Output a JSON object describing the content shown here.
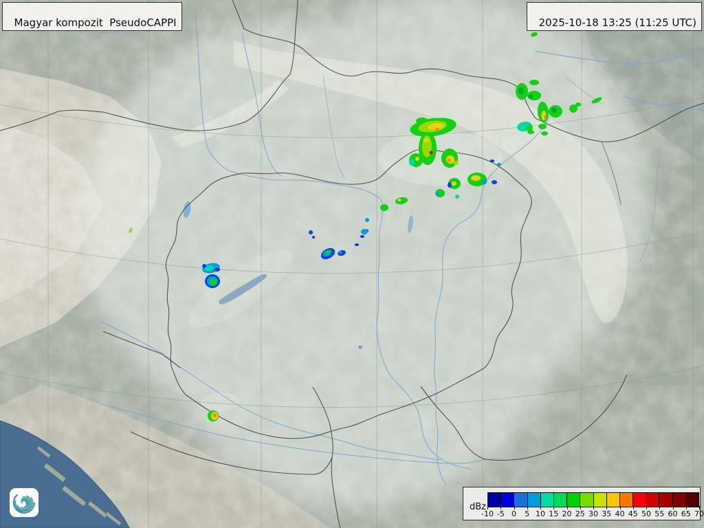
{
  "product": {
    "title": "Magyar kompozit  PseudoCAPPI",
    "timestamp": "2025-10-18 13:25 (11:25 UTC)"
  },
  "legend": {
    "unit": "dBz",
    "ticks": [
      "-10",
      "-5",
      "0",
      "5",
      "10",
      "15",
      "20",
      "25",
      "30",
      "35",
      "40",
      "45",
      "50",
      "55",
      "60",
      "65",
      "70"
    ],
    "colors": [
      "#0000A0",
      "#0000E1",
      "#1E6EDC",
      "#00A0DC",
      "#00DCA8",
      "#00DC5A",
      "#00D200",
      "#78DC00",
      "#C8E100",
      "#F5C800",
      "#FA7800",
      "#FA0000",
      "#D20000",
      "#A50000",
      "#820000",
      "#500000"
    ]
  },
  "logo": {
    "name": "hungaromet-spiral-logo",
    "gradient_start": "#45b27f",
    "gradient_end": "#2e6fae"
  },
  "map": {
    "colors": {
      "land": "#a9b2a7",
      "sea": "#4a6d92",
      "rivers": "#78a6d4",
      "borders": "#3c3c3c",
      "grid": "#8a8f8a",
      "coverage": "#f0f6ef",
      "echo_green": "#12D212",
      "echo_darkgreen": "#00AA32",
      "echo_yellowgreen": "#96DC00",
      "echo_yellow": "#E6D21E",
      "echo_orange": "#FA8C14",
      "echo_red": "#F50A0A",
      "echo_cyan": "#00A0DC",
      "echo_teal": "#00DCA8",
      "echo_blue": "#0A46E6"
    },
    "echoes": [
      [
        630,
        185,
        34,
        13,
        -8,
        "g"
      ],
      [
        614,
        176,
        9,
        5,
        0,
        "g"
      ],
      [
        629,
        184,
        21,
        8,
        -8,
        "lg"
      ],
      [
        634,
        184,
        12,
        5,
        -8,
        "y"
      ],
      [
        636,
        188,
        3,
        2,
        0,
        "o"
      ],
      [
        622,
        216,
        13,
        24,
        0,
        "g"
      ],
      [
        621,
        213,
        7,
        16,
        0,
        "lg"
      ],
      [
        620,
        204,
        4,
        3,
        0,
        "y"
      ],
      [
        605,
        235,
        5,
        3,
        0,
        "o"
      ],
      [
        627,
        222,
        2.5,
        2.5,
        0,
        "r"
      ],
      [
        654,
        230,
        12,
        14,
        0,
        "g"
      ],
      [
        655,
        232,
        6,
        6,
        0,
        "y"
      ],
      [
        663,
        237,
        4,
        3,
        0,
        "lg"
      ],
      [
        653,
        233,
        2.5,
        2.5,
        0,
        "o"
      ],
      [
        605,
        233,
        10,
        10,
        0,
        "g"
      ],
      [
        599,
        236,
        4,
        5,
        0,
        "t"
      ],
      [
        607,
        231,
        3,
        3,
        0,
        "y"
      ],
      [
        694,
        261,
        14,
        10,
        0,
        "g"
      ],
      [
        692,
        259,
        7,
        4,
        0,
        "y"
      ],
      [
        704,
        265,
        4,
        3,
        0,
        "c"
      ],
      [
        661,
        267,
        9,
        8,
        0,
        "g"
      ],
      [
        660,
        267,
        4,
        3,
        0,
        "y"
      ],
      [
        654,
        269,
        3,
        4,
        0,
        "b"
      ],
      [
        719,
        265,
        4,
        3,
        0,
        "b"
      ],
      [
        726,
        239,
        3,
        2,
        0,
        "c"
      ],
      [
        716,
        234,
        3,
        2,
        0,
        "b"
      ],
      [
        640,
        281,
        7,
        6,
        0,
        "g"
      ],
      [
        637,
        283,
        3,
        3,
        0,
        "c"
      ],
      [
        665,
        286,
        3,
        3,
        0,
        "t"
      ],
      [
        584,
        292,
        9,
        5,
        -10,
        "g"
      ],
      [
        581,
        291,
        2.5,
        2,
        0,
        "y"
      ],
      [
        559,
        302,
        6,
        5,
        0,
        "g"
      ],
      [
        534,
        320,
        3,
        3,
        0,
        "c"
      ],
      [
        533,
        336,
        3,
        2.5,
        0,
        "b"
      ],
      [
        759,
        133,
        9,
        12,
        0,
        "g"
      ],
      [
        758,
        132,
        4,
        5,
        0,
        "dg"
      ],
      [
        777,
        120,
        7,
        4,
        0,
        "g"
      ],
      [
        777,
        139,
        10,
        7,
        0,
        "g"
      ],
      [
        772,
        140,
        4,
        3,
        0,
        "dg"
      ],
      [
        790,
        163,
        8,
        15,
        -5,
        "g"
      ],
      [
        791,
        168,
        3.5,
        7,
        0,
        "y"
      ],
      [
        793,
        170,
        2,
        2.5,
        0,
        "o"
      ],
      [
        808,
        162,
        10,
        9,
        0,
        "g"
      ],
      [
        806,
        160,
        4,
        4,
        0,
        "dg"
      ],
      [
        834,
        158,
        6,
        6,
        0,
        "g"
      ],
      [
        841,
        152,
        4,
        3,
        0,
        "g"
      ],
      [
        763,
        184,
        11,
        7,
        -10,
        "t"
      ],
      [
        770,
        186,
        5,
        4,
        0,
        "g"
      ],
      [
        772,
        192,
        5,
        3,
        0,
        "g"
      ],
      [
        789,
        184,
        6,
        4,
        0,
        "g"
      ],
      [
        792,
        194,
        5,
        3,
        0,
        "g"
      ],
      [
        777,
        50,
        5,
        3,
        -15,
        "g"
      ],
      [
        802,
        43,
        4,
        2.5,
        -15,
        "g"
      ],
      [
        868,
        146,
        8,
        3,
        -25,
        "g"
      ],
      [
        307,
        390,
        13,
        7,
        -12,
        "c"
      ],
      [
        304,
        390,
        7,
        4,
        -12,
        "t"
      ],
      [
        316,
        392,
        4,
        3,
        0,
        "b"
      ],
      [
        297,
        387,
        3,
        3,
        0,
        "b"
      ],
      [
        309,
        409,
        11,
        10,
        0,
        "b"
      ],
      [
        309,
        409,
        8,
        7,
        0,
        "c"
      ],
      [
        310,
        410,
        5,
        5,
        0,
        "g"
      ],
      [
        477,
        369,
        11,
        7,
        -28,
        "b"
      ],
      [
        476,
        368,
        7,
        4,
        -28,
        "c"
      ],
      [
        477,
        367,
        4,
        2.5,
        -28,
        "g"
      ],
      [
        497,
        368,
        6,
        4,
        -15,
        "b"
      ],
      [
        495,
        367,
        2.5,
        2,
        0,
        "c"
      ],
      [
        530,
        337,
        5,
        4,
        0,
        "c"
      ],
      [
        527,
        344,
        3,
        2,
        0,
        "b"
      ],
      [
        519,
        356,
        3,
        2,
        0,
        "b"
      ],
      [
        452,
        338,
        3,
        3,
        0,
        "b"
      ],
      [
        456,
        345,
        2,
        2,
        0,
        "b"
      ],
      [
        310,
        605,
        8,
        8,
        0,
        "g"
      ],
      [
        312,
        605,
        5,
        6,
        0,
        "y"
      ],
      [
        312,
        604,
        3,
        3,
        0,
        "o"
      ],
      [
        190,
        335,
        2,
        4,
        25,
        "lg"
      ]
    ]
  }
}
